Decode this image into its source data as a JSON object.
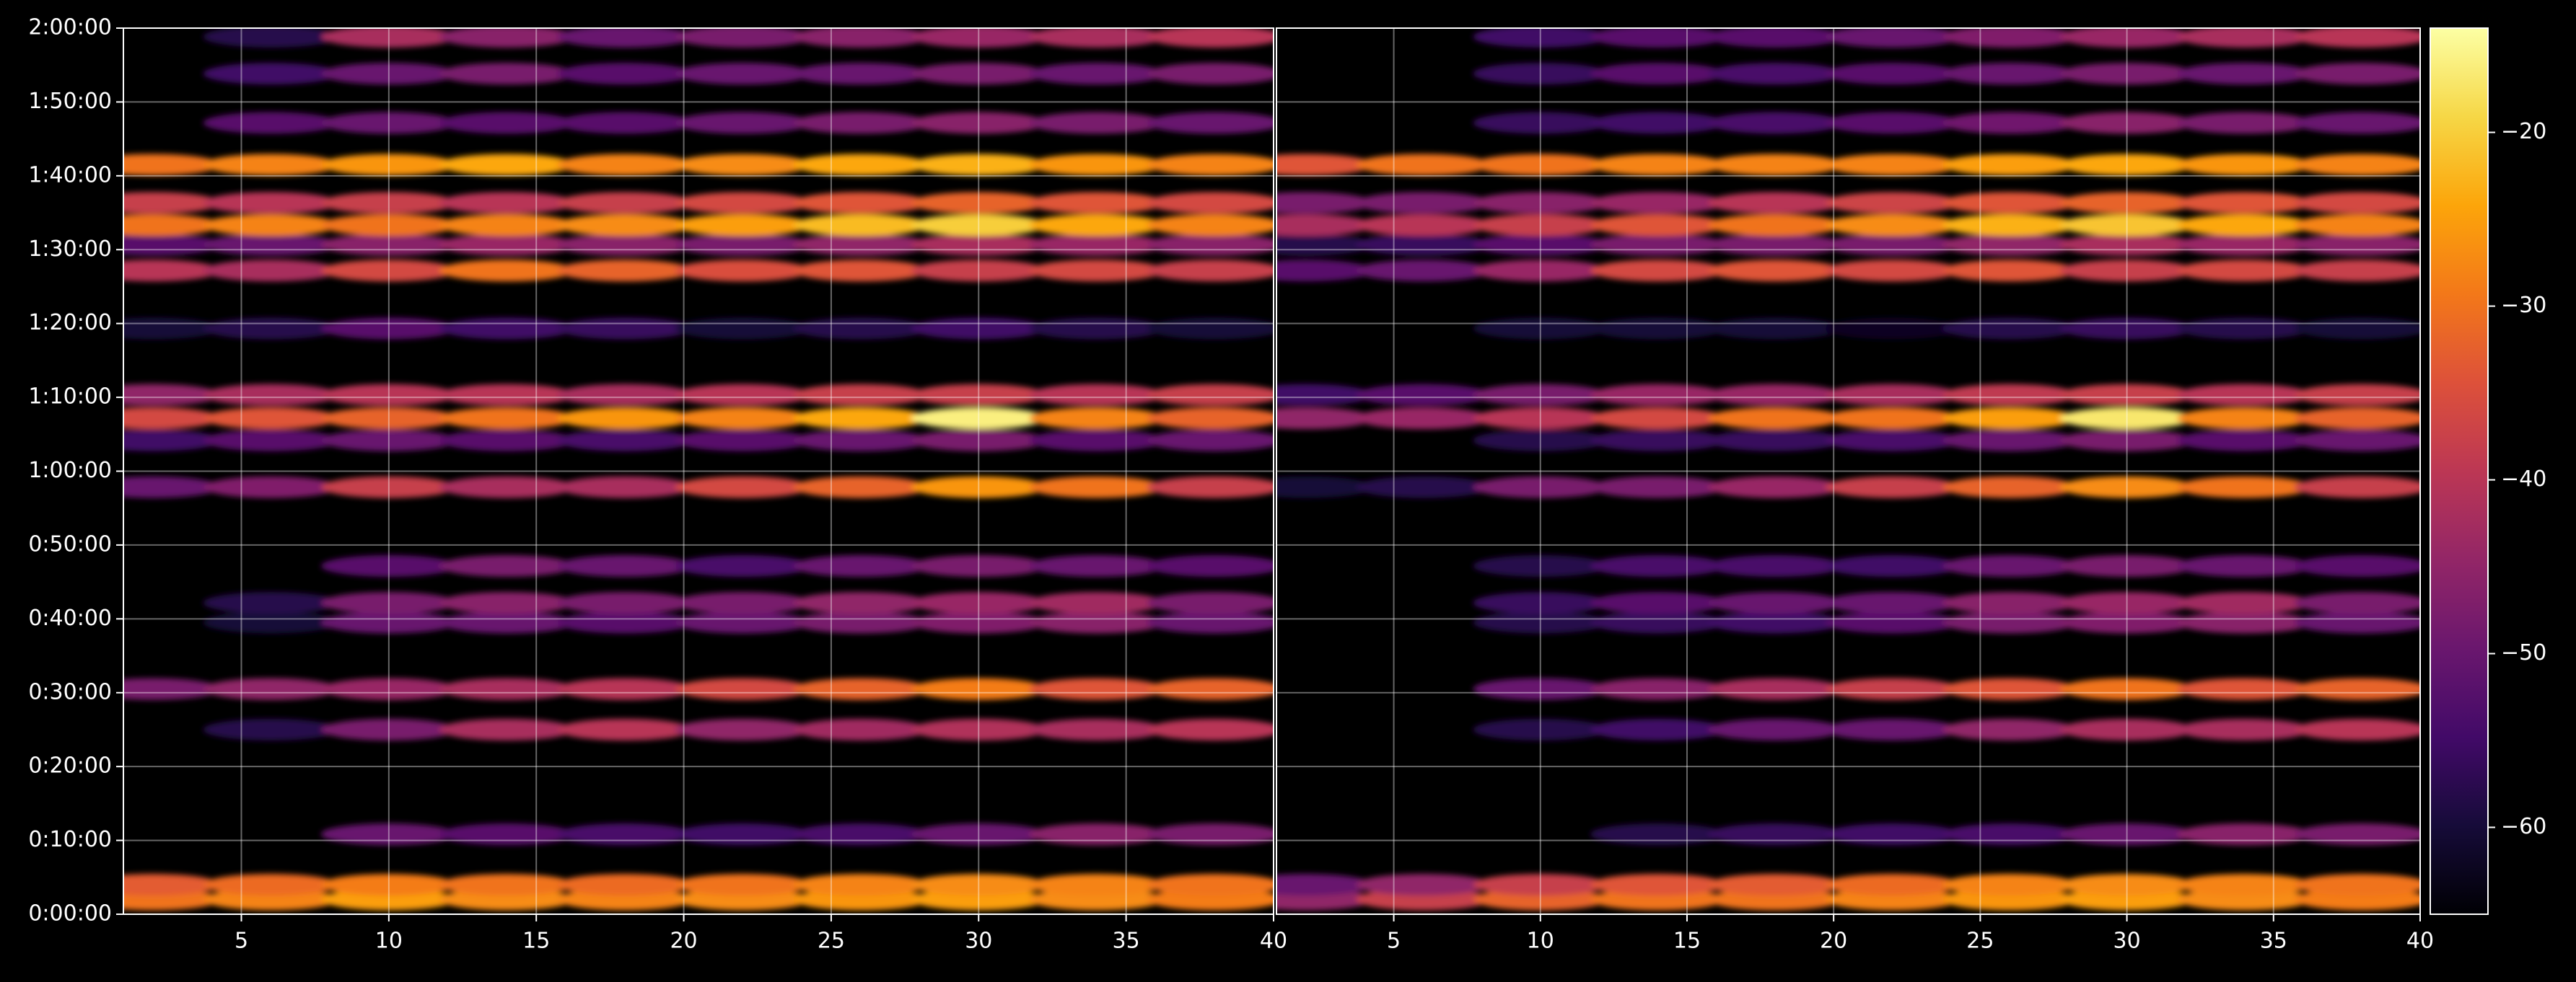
{
  "chart_data": {
    "type": "heatmap",
    "colormap": "inferno",
    "x": [
      2,
      6,
      10,
      14,
      18,
      22,
      26,
      30,
      34,
      38
    ],
    "y": [
      120,
      240,
      650,
      1500,
      1830,
      2370,
      2530,
      2830,
      3470,
      3850,
      4030,
      4220,
      4760,
      5230,
      5440,
      5600,
      5780,
      6090,
      6430,
      6830,
      7130
    ],
    "xlim": [
      1,
      40
    ],
    "xticks": [
      5,
      10,
      15,
      20,
      25,
      30,
      35,
      40
    ],
    "ylim": [
      0,
      7200
    ],
    "yticks": [
      {
        "value": 0,
        "label": "0:00:00"
      },
      {
        "value": 600,
        "label": "0:10:00"
      },
      {
        "value": 1200,
        "label": "0:20:00"
      },
      {
        "value": 1800,
        "label": "0:30:00"
      },
      {
        "value": 2400,
        "label": "0:40:00"
      },
      {
        "value": 3000,
        "label": "0:50:00"
      },
      {
        "value": 3600,
        "label": "1:00:00"
      },
      {
        "value": 4200,
        "label": "1:10:00"
      },
      {
        "value": 4800,
        "label": "1:20:00"
      },
      {
        "value": 5400,
        "label": "1:30:00"
      },
      {
        "value": 6000,
        "label": "1:40:00"
      },
      {
        "value": 6600,
        "label": "1:50:00"
      },
      {
        "value": 7200,
        "label": "2:00:00"
      }
    ],
    "grid": true,
    "clim": [
      -65,
      -14
    ],
    "cticks": [
      {
        "value": -60,
        "label": "−60"
      },
      {
        "value": -50,
        "label": "−50"
      },
      {
        "value": -40,
        "label": "−40"
      },
      {
        "value": -30,
        "label": "−30"
      },
      {
        "value": -20,
        "label": "−20"
      }
    ],
    "panels": [
      {
        "values": [
          [
            -30,
            -28,
            -25,
            -27,
            -28,
            -27,
            -26,
            -25,
            -27,
            -29
          ],
          [
            -33,
            -31,
            -29,
            -30,
            -31,
            -30,
            -28,
            -27,
            -28,
            -30
          ],
          [
            null,
            null,
            -50,
            -52,
            -54,
            -55,
            -54,
            -50,
            -46,
            -48
          ],
          [
            null,
            -58,
            -48,
            -42,
            -40,
            -45,
            -43,
            -41,
            -42,
            -40
          ],
          [
            -48,
            -45,
            -44,
            -42,
            -40,
            -36,
            -32,
            -29,
            -34,
            -32
          ],
          [
            null,
            -60,
            -50,
            -50,
            -52,
            -50,
            -48,
            -47,
            -46,
            -50
          ],
          [
            null,
            -58,
            -48,
            -46,
            -48,
            -48,
            -45,
            -44,
            -43,
            -48
          ],
          [
            null,
            null,
            -52,
            -48,
            -50,
            -54,
            -50,
            -48,
            -50,
            -52
          ],
          [
            -50,
            -47,
            -38,
            -42,
            -42,
            -36,
            -32,
            -26,
            -30,
            -38
          ],
          [
            -55,
            -52,
            -50,
            -52,
            -54,
            -52,
            -50,
            -48,
            -52,
            -50
          ],
          [
            -36,
            -34,
            -32,
            -30,
            -26,
            -28,
            -24,
            -16,
            -28,
            -32
          ],
          [
            -45,
            -42,
            -40,
            -40,
            -42,
            -40,
            -38,
            -38,
            -40,
            -38
          ],
          [
            -60,
            -58,
            -52,
            -55,
            -56,
            -60,
            -58,
            -55,
            -58,
            -60
          ],
          [
            -40,
            -42,
            -36,
            -30,
            -32,
            -35,
            -34,
            -38,
            -36,
            -38
          ],
          [
            -52,
            -50,
            -46,
            -44,
            -46,
            -48,
            -45,
            -42,
            -44,
            -46
          ],
          [
            -30,
            -28,
            -30,
            -28,
            -27,
            -25,
            -22,
            -20,
            -24,
            -28
          ],
          [
            -38,
            -40,
            -38,
            -40,
            -38,
            -36,
            -34,
            -32,
            -34,
            -36
          ],
          [
            -30,
            -28,
            -26,
            -24,
            -28,
            -27,
            -24,
            -23,
            -26,
            -28
          ],
          [
            null,
            -52,
            -50,
            -52,
            -52,
            -50,
            -48,
            -46,
            -48,
            -50
          ],
          [
            null,
            -55,
            -50,
            -48,
            -52,
            -50,
            -50,
            -48,
            -50,
            -48
          ],
          [
            null,
            -58,
            -42,
            -46,
            -50,
            -48,
            -46,
            -44,
            -42,
            -40
          ]
        ]
      },
      {
        "values": [
          [
            -45,
            -38,
            -32,
            -30,
            -30,
            -28,
            -26,
            -25,
            -27,
            -29
          ],
          [
            -50,
            -45,
            -38,
            -34,
            -33,
            -31,
            -28,
            -27,
            -28,
            -30
          ],
          [
            null,
            null,
            null,
            -58,
            -56,
            -55,
            -54,
            -50,
            -46,
            -48
          ],
          [
            null,
            null,
            -58,
            -55,
            -50,
            -50,
            -45,
            -42,
            -42,
            -40
          ],
          [
            null,
            null,
            -50,
            -46,
            -42,
            -38,
            -34,
            -30,
            -34,
            -32
          ],
          [
            null,
            null,
            -58,
            -56,
            -55,
            -52,
            -48,
            -47,
            -46,
            -50
          ],
          [
            null,
            null,
            -56,
            -52,
            -50,
            -50,
            -46,
            -44,
            -43,
            -48
          ],
          [
            null,
            null,
            -58,
            -54,
            -54,
            -55,
            -50,
            -48,
            -50,
            -52
          ],
          [
            -60,
            -58,
            -48,
            -48,
            -44,
            -38,
            -32,
            -27,
            -30,
            -38
          ],
          [
            null,
            null,
            -58,
            -56,
            -56,
            -54,
            -50,
            -48,
            -52,
            -50
          ],
          [
            -45,
            -44,
            -40,
            -36,
            -30,
            -30,
            -25,
            -17,
            -28,
            -32
          ],
          [
            -55,
            -52,
            -48,
            -44,
            -44,
            -42,
            -39,
            -38,
            -40,
            -38
          ],
          [
            null,
            null,
            -60,
            -60,
            -60,
            -62,
            -58,
            -56,
            -58,
            -60
          ],
          [
            -52,
            -50,
            -44,
            -36,
            -34,
            -36,
            -34,
            -38,
            -36,
            -38
          ],
          [
            -58,
            -56,
            -52,
            -48,
            -48,
            -48,
            -45,
            -42,
            -44,
            -46
          ],
          [
            -42,
            -40,
            -38,
            -34,
            -30,
            -27,
            -23,
            -21,
            -24,
            -28
          ],
          [
            -48,
            -48,
            -46,
            -44,
            -40,
            -37,
            -34,
            -32,
            -34,
            -36
          ],
          [
            -34,
            -30,
            -30,
            -28,
            -28,
            -28,
            -25,
            -24,
            -26,
            -28
          ],
          [
            null,
            null,
            -56,
            -55,
            -54,
            -52,
            -49,
            -46,
            -48,
            -50
          ],
          [
            null,
            null,
            -56,
            -52,
            -54,
            -52,
            -50,
            -48,
            -50,
            -48
          ],
          [
            null,
            null,
            -55,
            -52,
            -52,
            -50,
            -47,
            -44,
            -42,
            -40
          ]
        ]
      }
    ]
  }
}
